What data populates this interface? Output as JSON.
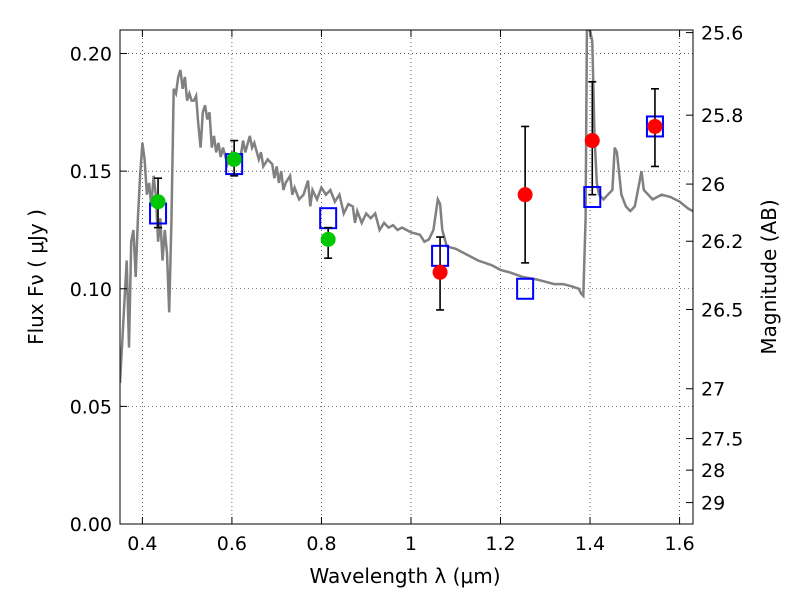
{
  "chart_data": {
    "type": "scatter",
    "xlabel": "Wavelength  λ (μm)",
    "ylabel": "Flux  Fν  ( μJy )",
    "y2label": "Magnitude (AB)",
    "xlim": [
      0.35,
      1.63
    ],
    "ylim": [
      0.0,
      0.21
    ],
    "x_ticks": [
      0.4,
      0.6,
      0.8,
      1.0,
      1.2,
      1.4,
      1.6
    ],
    "x_tick_labels": [
      "0.4",
      "0.6",
      "0.8",
      "1",
      "1.2",
      "1.4",
      "1.6"
    ],
    "y_ticks": [
      0.0,
      0.05,
      0.1,
      0.15,
      0.2
    ],
    "y_tick_labels": [
      "0.00",
      "0.05",
      "0.10",
      "0.15",
      "0.20"
    ],
    "y2_ticks": [
      {
        "label": "25.6",
        "flux": 0.2089
      },
      {
        "label": "25.8",
        "flux": 0.1738
      },
      {
        "label": "26",
        "flux": 0.1445
      },
      {
        "label": "26.2",
        "flux": 0.1202
      },
      {
        "label": "26.5",
        "flux": 0.0912
      },
      {
        "label": "27",
        "flux": 0.0575
      },
      {
        "label": "27.5",
        "flux": 0.0363
      },
      {
        "label": "28",
        "flux": 0.0229
      },
      {
        "label": "29",
        "flux": 0.0091
      }
    ],
    "grid": true,
    "series": [
      {
        "kind": "line",
        "color": "#808080",
        "points": [
          [
            0.35,
            0.06
          ],
          [
            0.36,
            0.095
          ],
          [
            0.365,
            0.112
          ],
          [
            0.37,
            0.075
          ],
          [
            0.375,
            0.12
          ],
          [
            0.38,
            0.125
          ],
          [
            0.385,
            0.105
          ],
          [
            0.39,
            0.13
          ],
          [
            0.395,
            0.148
          ],
          [
            0.4,
            0.162
          ],
          [
            0.405,
            0.155
          ],
          [
            0.41,
            0.14
          ],
          [
            0.415,
            0.145
          ],
          [
            0.42,
            0.135
          ],
          [
            0.425,
            0.148
          ],
          [
            0.43,
            0.14
          ],
          [
            0.435,
            0.12
          ],
          [
            0.44,
            0.13
          ],
          [
            0.445,
            0.112
          ],
          [
            0.45,
            0.125
          ],
          [
            0.455,
            0.115
          ],
          [
            0.46,
            0.09
          ],
          [
            0.465,
            0.13
          ],
          [
            0.47,
            0.185
          ],
          [
            0.475,
            0.183
          ],
          [
            0.48,
            0.19
          ],
          [
            0.485,
            0.193
          ],
          [
            0.49,
            0.185
          ],
          [
            0.495,
            0.19
          ],
          [
            0.5,
            0.18
          ],
          [
            0.505,
            0.183
          ],
          [
            0.51,
            0.18
          ],
          [
            0.515,
            0.18
          ],
          [
            0.52,
            0.182
          ],
          [
            0.525,
            0.17
          ],
          [
            0.53,
            0.16
          ],
          [
            0.535,
            0.175
          ],
          [
            0.54,
            0.178
          ],
          [
            0.545,
            0.172
          ],
          [
            0.55,
            0.175
          ],
          [
            0.555,
            0.16
          ],
          [
            0.56,
            0.165
          ],
          [
            0.565,
            0.158
          ],
          [
            0.57,
            0.162
          ],
          [
            0.575,
            0.156
          ],
          [
            0.58,
            0.16
          ],
          [
            0.59,
            0.153
          ],
          [
            0.6,
            0.158
          ],
          [
            0.61,
            0.155
          ],
          [
            0.62,
            0.157
          ],
          [
            0.625,
            0.163
          ],
          [
            0.63,
            0.158
          ],
          [
            0.64,
            0.165
          ],
          [
            0.645,
            0.16
          ],
          [
            0.65,
            0.162
          ],
          [
            0.66,
            0.155
          ],
          [
            0.665,
            0.158
          ],
          [
            0.67,
            0.152
          ],
          [
            0.68,
            0.155
          ],
          [
            0.69,
            0.153
          ],
          [
            0.695,
            0.147
          ],
          [
            0.7,
            0.152
          ],
          [
            0.705,
            0.145
          ],
          [
            0.71,
            0.15
          ],
          [
            0.715,
            0.142
          ],
          [
            0.72,
            0.145
          ],
          [
            0.73,
            0.148
          ],
          [
            0.735,
            0.14
          ],
          [
            0.74,
            0.143
          ],
          [
            0.75,
            0.138
          ],
          [
            0.76,
            0.14
          ],
          [
            0.77,
            0.146
          ],
          [
            0.775,
            0.135
          ],
          [
            0.78,
            0.142
          ],
          [
            0.79,
            0.138
          ],
          [
            0.8,
            0.143
          ],
          [
            0.81,
            0.14
          ],
          [
            0.82,
            0.142
          ],
          [
            0.83,
            0.137
          ],
          [
            0.84,
            0.14
          ],
          [
            0.85,
            0.132
          ],
          [
            0.86,
            0.136
          ],
          [
            0.87,
            0.135
          ],
          [
            0.875,
            0.128
          ],
          [
            0.88,
            0.133
          ],
          [
            0.89,
            0.128
          ],
          [
            0.9,
            0.132
          ],
          [
            0.91,
            0.13
          ],
          [
            0.92,
            0.132
          ],
          [
            0.93,
            0.125
          ],
          [
            0.94,
            0.128
          ],
          [
            0.95,
            0.126
          ],
          [
            0.96,
            0.127
          ],
          [
            0.97,
            0.125
          ],
          [
            0.98,
            0.126
          ],
          [
            1.0,
            0.124
          ],
          [
            1.02,
            0.123
          ],
          [
            1.03,
            0.12
          ],
          [
            1.04,
            0.121
          ],
          [
            1.05,
            0.125
          ],
          [
            1.06,
            0.138
          ],
          [
            1.065,
            0.136
          ],
          [
            1.07,
            0.125
          ],
          [
            1.08,
            0.118
          ],
          [
            1.1,
            0.117
          ],
          [
            1.12,
            0.115
          ],
          [
            1.15,
            0.112
          ],
          [
            1.18,
            0.11
          ],
          [
            1.2,
            0.108
          ],
          [
            1.22,
            0.107
          ],
          [
            1.25,
            0.105
          ],
          [
            1.28,
            0.104
          ],
          [
            1.3,
            0.103
          ],
          [
            1.32,
            0.102
          ],
          [
            1.34,
            0.102
          ],
          [
            1.36,
            0.101
          ],
          [
            1.375,
            0.1
          ],
          [
            1.38,
            0.098
          ],
          [
            1.385,
            0.097
          ],
          [
            1.39,
            0.13
          ],
          [
            1.393,
            0.21
          ],
          [
            1.4,
            0.21
          ],
          [
            1.405,
            0.205
          ],
          [
            1.41,
            0.165
          ],
          [
            1.415,
            0.145
          ],
          [
            1.42,
            0.14
          ],
          [
            1.43,
            0.138
          ],
          [
            1.44,
            0.14
          ],
          [
            1.45,
            0.142
          ],
          [
            1.455,
            0.16
          ],
          [
            1.46,
            0.158
          ],
          [
            1.47,
            0.14
          ],
          [
            1.48,
            0.135
          ],
          [
            1.49,
            0.133
          ],
          [
            1.5,
            0.135
          ],
          [
            1.51,
            0.145
          ],
          [
            1.515,
            0.15
          ],
          [
            1.52,
            0.142
          ],
          [
            1.53,
            0.14
          ],
          [
            1.54,
            0.138
          ],
          [
            1.55,
            0.139
          ],
          [
            1.56,
            0.14
          ],
          [
            1.58,
            0.139
          ],
          [
            1.6,
            0.137
          ],
          [
            1.62,
            0.134
          ],
          [
            1.63,
            0.133
          ]
        ]
      },
      {
        "kind": "squares",
        "color": "#0000ff",
        "points": [
          [
            0.435,
            0.132
          ],
          [
            0.605,
            0.153
          ],
          [
            0.815,
            0.13
          ],
          [
            1.065,
            0.114
          ],
          [
            1.255,
            0.1
          ],
          [
            1.405,
            0.139
          ],
          [
            1.545,
            0.169
          ]
        ]
      },
      {
        "kind": "circles",
        "color": "#00c800",
        "points": [
          {
            "x": 0.435,
            "y": 0.137,
            "err_lo": 0.126,
            "err_hi": 0.147
          },
          {
            "x": 0.605,
            "y": 0.155,
            "err_lo": 0.148,
            "err_hi": 0.163
          },
          {
            "x": 0.815,
            "y": 0.121,
            "err_lo": 0.113,
            "err_hi": 0.126
          }
        ]
      },
      {
        "kind": "circles",
        "color": "#ff0000",
        "points": [
          {
            "x": 1.065,
            "y": 0.107,
            "err_lo": 0.091,
            "err_hi": 0.122
          },
          {
            "x": 1.255,
            "y": 0.14,
            "err_lo": 0.111,
            "err_hi": 0.169
          },
          {
            "x": 1.405,
            "y": 0.163,
            "err_lo": 0.14,
            "err_hi": 0.188
          },
          {
            "x": 1.545,
            "y": 0.169,
            "err_lo": 0.152,
            "err_hi": 0.185
          }
        ]
      }
    ]
  }
}
